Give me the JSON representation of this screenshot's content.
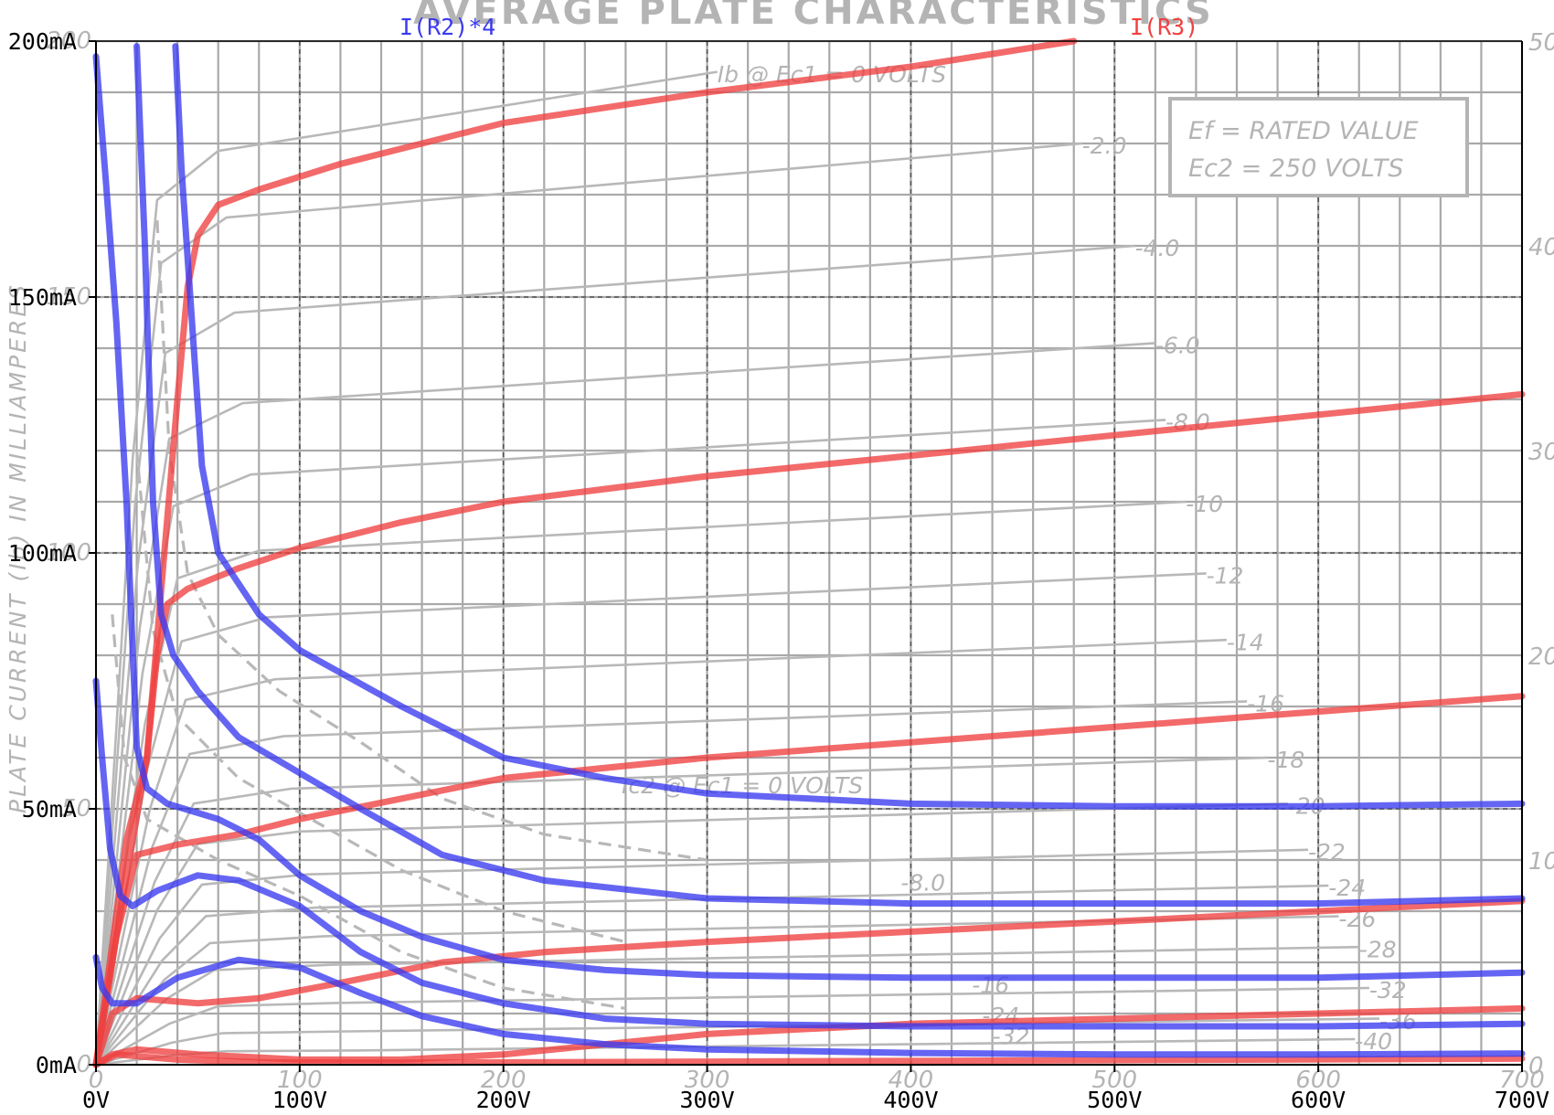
{
  "chart_data": {
    "type": "line",
    "title": "AVERAGE PLATE CHARACTERISTICS",
    "ylabel": "PLATE CURRENT (Ib) IN MILLIAMPERES",
    "xlim": [
      0,
      700
    ],
    "ylim": [
      0,
      200
    ],
    "x_ticks": [
      "0V",
      "100V",
      "200V",
      "300V",
      "400V",
      "500V",
      "600V",
      "700V"
    ],
    "y_ticks": [
      "0mA",
      "50mA",
      "100mA",
      "150mA",
      "200mA"
    ],
    "right_axis_ticks": [
      "0",
      "10",
      "20",
      "30",
      "40",
      "50"
    ],
    "bottom_sheet_ticks": [
      "0",
      "100",
      "200",
      "300",
      "400",
      "500",
      "600",
      "700"
    ],
    "left_sheet_ticks": [
      "0",
      "50",
      "100",
      "150",
      "200"
    ],
    "legend": [
      {
        "name": "I(R2)*4",
        "color": "#3a3af0"
      },
      {
        "name": "I(R3)",
        "color": "#f04040"
      }
    ],
    "sheet_box": [
      "Ef = RATED VALUE",
      "Ec2 = 250 VOLTS"
    ],
    "sheet_annotations": [
      {
        "text": "Ib @ Ec1 = 0 VOLTS",
        "x": 305,
        "y": 192
      },
      {
        "text": "-2.0",
        "x": 484,
        "y": 178
      },
      {
        "text": "-4.0",
        "x": 510,
        "y": 158
      },
      {
        "text": "-6.0",
        "x": 520,
        "y": 139
      },
      {
        "text": "-8.0",
        "x": 525,
        "y": 124
      },
      {
        "text": "-10",
        "x": 535,
        "y": 108
      },
      {
        "text": "-12",
        "x": 545,
        "y": 94
      },
      {
        "text": "-14",
        "x": 555,
        "y": 81
      },
      {
        "text": "-16",
        "x": 565,
        "y": 69
      },
      {
        "text": "-18",
        "x": 575,
        "y": 58
      },
      {
        "text": "-20",
        "x": 585,
        "y": 49
      },
      {
        "text": "-22",
        "x": 595,
        "y": 40
      },
      {
        "text": "-24",
        "x": 605,
        "y": 33
      },
      {
        "text": "-26",
        "x": 610,
        "y": 27
      },
      {
        "text": "-28",
        "x": 620,
        "y": 21
      },
      {
        "text": "-32",
        "x": 625,
        "y": 13
      },
      {
        "text": "-36",
        "x": 630,
        "y": 7
      },
      {
        "text": "-40",
        "x": 618,
        "y": 3
      },
      {
        "text": "Ic2 @ Ec1 = 0 VOLTS",
        "x": 258,
        "y": 53
      },
      {
        "text": "-8.0",
        "x": 395,
        "y": 34
      },
      {
        "text": "-16",
        "x": 430,
        "y": 14
      },
      {
        "text": "-24",
        "x": 435,
        "y": 8
      },
      {
        "text": "-32",
        "x": 440,
        "y": 4
      }
    ],
    "series": [
      {
        "group": "I(R3)",
        "points": [
          [
            0,
            0
          ],
          [
            15,
            44
          ],
          [
            25,
            60
          ],
          [
            40,
            130
          ],
          [
            45,
            152
          ],
          [
            50,
            162
          ],
          [
            60,
            168
          ],
          [
            80,
            171
          ],
          [
            120,
            176
          ],
          [
            200,
            184
          ],
          [
            300,
            190
          ],
          [
            400,
            195
          ],
          [
            480,
            200
          ]
        ]
      },
      {
        "group": "I(R3)",
        "points": [
          [
            0,
            0
          ],
          [
            12,
            30
          ],
          [
            25,
            60
          ],
          [
            30,
            80
          ],
          [
            35,
            90
          ],
          [
            45,
            93
          ],
          [
            70,
            97
          ],
          [
            100,
            101
          ],
          [
            150,
            106
          ],
          [
            200,
            110
          ],
          [
            300,
            115
          ],
          [
            400,
            119
          ],
          [
            500,
            123
          ],
          [
            600,
            127
          ],
          [
            700,
            131
          ]
        ]
      },
      {
        "group": "I(R3)",
        "points": [
          [
            0,
            0
          ],
          [
            10,
            25
          ],
          [
            20,
            41
          ],
          [
            40,
            43
          ],
          [
            70,
            45
          ],
          [
            100,
            48
          ],
          [
            150,
            52
          ],
          [
            200,
            56
          ],
          [
            300,
            60
          ],
          [
            400,
            63
          ],
          [
            500,
            66
          ],
          [
            600,
            69
          ],
          [
            700,
            72
          ]
        ]
      },
      {
        "group": "I(R3)",
        "points": [
          [
            0,
            0
          ],
          [
            8,
            10
          ],
          [
            20,
            13
          ],
          [
            50,
            12
          ],
          [
            80,
            13
          ],
          [
            120,
            16
          ],
          [
            170,
            20
          ],
          [
            220,
            22
          ],
          [
            300,
            24
          ],
          [
            400,
            26
          ],
          [
            500,
            28
          ],
          [
            600,
            30
          ],
          [
            700,
            32
          ]
        ]
      },
      {
        "group": "I(R3)",
        "points": [
          [
            0,
            0
          ],
          [
            8,
            2
          ],
          [
            20,
            3
          ],
          [
            50,
            2
          ],
          [
            100,
            1
          ],
          [
            150,
            1
          ],
          [
            200,
            2
          ],
          [
            250,
            4
          ],
          [
            300,
            6
          ],
          [
            400,
            8
          ],
          [
            500,
            9
          ],
          [
            600,
            10
          ],
          [
            700,
            11
          ]
        ]
      },
      {
        "group": "I(R3)",
        "points": [
          [
            0,
            0
          ],
          [
            10,
            2
          ],
          [
            40,
            1
          ],
          [
            80,
            0.5
          ],
          [
            150,
            0.4
          ],
          [
            300,
            0.6
          ],
          [
            500,
            0.9
          ],
          [
            700,
            1.2
          ]
        ]
      },
      {
        "group": "I(R2)*4",
        "points": [
          [
            39,
            199
          ],
          [
            42,
            175
          ],
          [
            48,
            140
          ],
          [
            52,
            117
          ],
          [
            60,
            100
          ],
          [
            80,
            88
          ],
          [
            100,
            81
          ],
          [
            150,
            70
          ],
          [
            200,
            60
          ],
          [
            250,
            56
          ],
          [
            300,
            53
          ],
          [
            400,
            51
          ],
          [
            500,
            50.5
          ],
          [
            600,
            50.5
          ],
          [
            700,
            51
          ]
        ]
      },
      {
        "group": "I(R2)*4",
        "points": [
          [
            20,
            199
          ],
          [
            24,
            160
          ],
          [
            28,
            110
          ],
          [
            32,
            88
          ],
          [
            38,
            80
          ],
          [
            50,
            73
          ],
          [
            70,
            64
          ],
          [
            100,
            57
          ],
          [
            130,
            50
          ],
          [
            170,
            41
          ],
          [
            220,
            36
          ],
          [
            300,
            32.5
          ],
          [
            400,
            31.5
          ],
          [
            500,
            31.5
          ],
          [
            600,
            31.5
          ],
          [
            700,
            32.5
          ]
        ]
      },
      {
        "group": "I(R2)*4",
        "points": [
          [
            0,
            197
          ],
          [
            5,
            172
          ],
          [
            10,
            145
          ],
          [
            15,
            110
          ],
          [
            20,
            62
          ],
          [
            25,
            54
          ],
          [
            35,
            51
          ],
          [
            60,
            48
          ],
          [
            80,
            44
          ],
          [
            100,
            37
          ],
          [
            130,
            30
          ],
          [
            160,
            25
          ],
          [
            200,
            20.5
          ],
          [
            250,
            18.5
          ],
          [
            300,
            17.5
          ],
          [
            400,
            17
          ],
          [
            500,
            17
          ],
          [
            600,
            17
          ],
          [
            700,
            18
          ]
        ]
      },
      {
        "group": "I(R2)*4",
        "points": [
          [
            0,
            75
          ],
          [
            3,
            60
          ],
          [
            7,
            42
          ],
          [
            12,
            33
          ],
          [
            18,
            31
          ],
          [
            30,
            34
          ],
          [
            50,
            37
          ],
          [
            70,
            36
          ],
          [
            100,
            31
          ],
          [
            130,
            22
          ],
          [
            160,
            16
          ],
          [
            200,
            12
          ],
          [
            250,
            9
          ],
          [
            300,
            8
          ],
          [
            400,
            7.5
          ],
          [
            500,
            7.5
          ],
          [
            600,
            7.5
          ],
          [
            700,
            8
          ]
        ]
      },
      {
        "group": "I(R2)*4",
        "points": [
          [
            0,
            21
          ],
          [
            3,
            15
          ],
          [
            8,
            12
          ],
          [
            20,
            12
          ],
          [
            40,
            17
          ],
          [
            70,
            20.5
          ],
          [
            100,
            19
          ],
          [
            130,
            14
          ],
          [
            160,
            9.5
          ],
          [
            200,
            6
          ],
          [
            250,
            4
          ],
          [
            300,
            3
          ],
          [
            400,
            2.3
          ],
          [
            500,
            2
          ],
          [
            600,
            2
          ],
          [
            700,
            2.2
          ]
        ]
      }
    ]
  }
}
